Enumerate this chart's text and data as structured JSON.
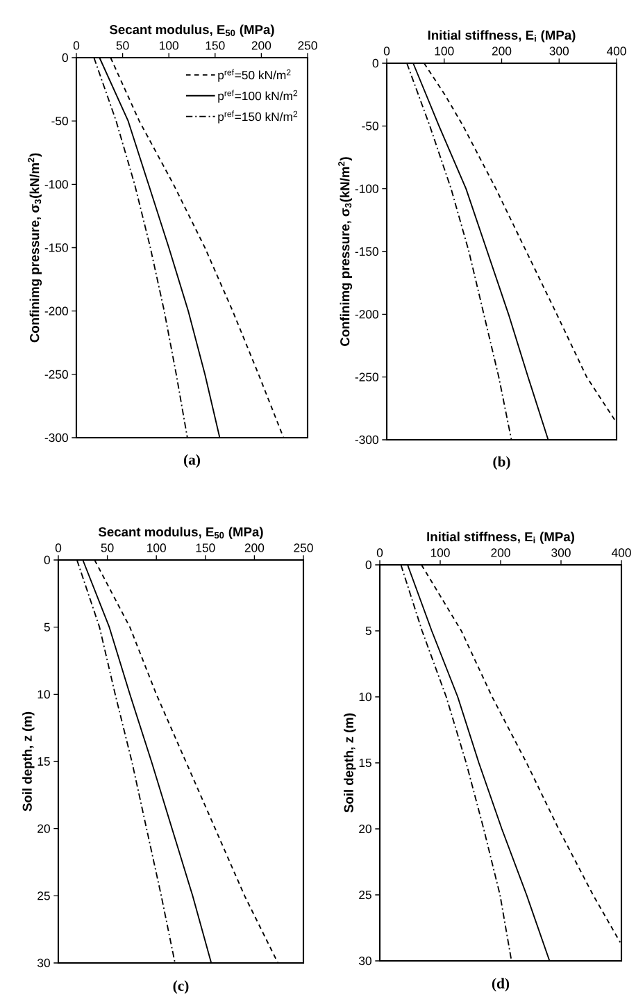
{
  "chart_data": [
    {
      "type": "line",
      "xlabel": "Secant modulus, E$_{50}$ (MPa)",
      "ylabel": "Confinimg pressure, σ$_{3}$(kN/m$^{2}$)",
      "annotations": [
        "(a)"
      ],
      "xlim": [
        0,
        250
      ],
      "xticks": [
        0,
        50,
        100,
        150,
        200,
        250
      ],
      "ylim": [
        -300,
        0
      ],
      "yticks": [
        0,
        -50,
        -100,
        -150,
        -200,
        -250,
        -300
      ],
      "legend": "top right",
      "series": [
        {
          "name": "p$^{ref}$=50 kN/m$^{2}$",
          "color": "#000000",
          "line_style": "dashed",
          "x": [
            37,
            68,
            105,
            139,
            169,
            197,
            224
          ],
          "values": [
            0,
            -50,
            -100,
            -150,
            -200,
            -250,
            -300
          ]
        },
        {
          "name": "p$^{ref}$=100 kN/m$^{2}$",
          "color": "#000000",
          "line_style": "solid",
          "x": [
            25,
            56,
            78,
            100,
            121,
            139,
            155
          ],
          "values": [
            0,
            -50,
            -100,
            -150,
            -200,
            -250,
            -300
          ]
        },
        {
          "name": "p$^{ref}$=150 kN/m$^{2}$",
          "color": "#000000",
          "line_style": "dashdot",
          "x": [
            19,
            43,
            63,
            80,
            95,
            108,
            120
          ],
          "values": [
            0,
            -50,
            -100,
            -150,
            -200,
            -250,
            -300
          ]
        }
      ]
    },
    {
      "type": "line",
      "xlabel": "Initial stiffness, E$_{i}$ (MPa)",
      "ylabel": "Confinimg pressure, σ$_{3}$(kN/m$^{2}$)",
      "annotations": [
        "(b)"
      ],
      "xlim": [
        0,
        400
      ],
      "xticks": [
        0,
        100,
        200,
        300,
        400
      ],
      "ylim": [
        -300,
        0
      ],
      "yticks": [
        0,
        -50,
        -100,
        -150,
        -200,
        -250,
        -300
      ],
      "series": [
        {
          "color": "#000000",
          "line_style": "dashed",
          "x": [
            65,
            101,
            133,
            190,
            243,
            296,
            348,
            398
          ],
          "values": [
            0,
            -25,
            -50,
            -100,
            -150,
            -200,
            -250,
            -285
          ]
        },
        {
          "color": "#000000",
          "line_style": "solid",
          "x": [
            46,
            91,
            138,
            175,
            212,
            246,
            281
          ],
          "values": [
            0,
            -50,
            -100,
            -150,
            -200,
            -250,
            -300
          ]
        },
        {
          "color": "#000000",
          "line_style": "dashdot",
          "x": [
            35,
            75,
            112,
            143,
            169,
            195,
            217
          ],
          "values": [
            0,
            -50,
            -100,
            -150,
            -200,
            -250,
            -300
          ]
        }
      ]
    },
    {
      "type": "line",
      "xlabel": "Secant modulus, E$_{50}$ (MPa)",
      "ylabel": "Soil depth, z (m)",
      "annotations": [
        "(c)"
      ],
      "xlim": [
        0,
        250
      ],
      "xticks": [
        0,
        50,
        100,
        150,
        200,
        250
      ],
      "ylim": [
        30,
        0
      ],
      "yticks": [
        0,
        5,
        10,
        15,
        20,
        25,
        30
      ],
      "series": [
        {
          "color": "#000000",
          "line_style": "dashed",
          "x": [
            37,
            73,
            100,
            130,
            160,
            190,
            224
          ],
          "values": [
            0,
            5,
            10,
            15,
            20,
            25,
            30
          ]
        },
        {
          "color": "#000000",
          "line_style": "solid",
          "x": [
            25,
            52,
            73,
            95,
            116,
            137,
            156
          ],
          "values": [
            0,
            5,
            10,
            15,
            20,
            25,
            30
          ]
        },
        {
          "color": "#000000",
          "line_style": "dashdot",
          "x": [
            19,
            42,
            58,
            75,
            90,
            105,
            119
          ],
          "values": [
            0,
            5,
            10,
            15,
            20,
            25,
            30
          ]
        }
      ]
    },
    {
      "type": "line",
      "xlabel": "Initial stiffness, E$_{i}$ (MPa)",
      "ylabel": "Soil depth, z (m)",
      "annotations": [
        "(d)"
      ],
      "xlim": [
        0,
        400
      ],
      "xticks": [
        0,
        100,
        200,
        300,
        400
      ],
      "ylim": [
        30,
        0
      ],
      "yticks": [
        0,
        5,
        10,
        15,
        20,
        25,
        30
      ],
      "series": [
        {
          "color": "#000000",
          "line_style": "dashed",
          "x": [
            69,
            135,
            186,
            243,
            296,
            353,
            398
          ],
          "values": [
            0,
            5,
            10,
            15,
            20,
            25,
            28.6
          ]
        },
        {
          "color": "#000000",
          "line_style": "solid",
          "x": [
            46,
            86,
            129,
            164,
            202,
            243,
            281
          ],
          "values": [
            0,
            5,
            10,
            15,
            20,
            25,
            30
          ]
        },
        {
          "color": "#000000",
          "line_style": "dashdot",
          "x": [
            35,
            70,
            110,
            143,
            172,
            199,
            218
          ],
          "values": [
            0,
            5,
            10,
            15,
            20,
            25,
            30
          ]
        }
      ]
    }
  ]
}
